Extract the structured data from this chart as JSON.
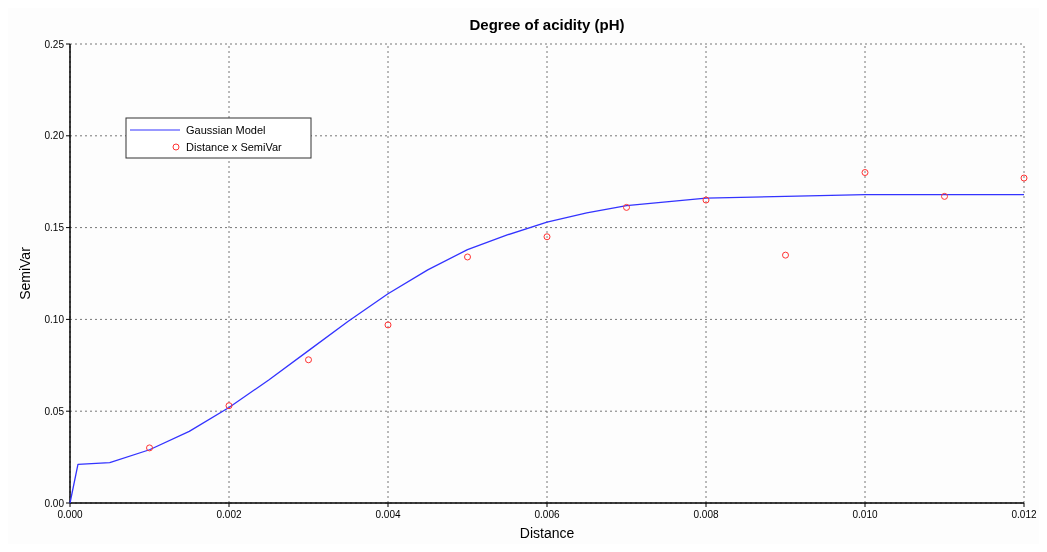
{
  "chart_data": {
    "type": "line",
    "title": "Degree of acidity (pH)",
    "xlabel": "Distance",
    "ylabel": "SemiVar",
    "xlim": [
      0,
      0.012
    ],
    "xticks": [
      {
        "value": 0,
        "label": "0.000"
      },
      {
        "value": 0.002,
        "label": "0.002"
      },
      {
        "value": 0.004,
        "label": "0.004"
      },
      {
        "value": 0.006,
        "label": "0.006"
      },
      {
        "value": 0.008,
        "label": "0.008"
      },
      {
        "value": 0.01,
        "label": "0.010"
      },
      {
        "value": 0.012,
        "label": "0.012"
      }
    ],
    "ylim": [
      0,
      0.25
    ],
    "yticks": [
      {
        "value": 0,
        "label": "0.00"
      },
      {
        "value": 0.05,
        "label": "0.05"
      },
      {
        "value": 0.1,
        "label": "0.10"
      },
      {
        "value": 0.15,
        "label": "0.15"
      },
      {
        "value": 0.2,
        "label": "0.20"
      },
      {
        "value": 0.25,
        "label": "0.25"
      }
    ],
    "grid": true,
    "legend": "top left",
    "series": [
      {
        "name": "Gaussian Model",
        "color": "#3333ff",
        "x": [
          0,
          0.0001,
          0.0005,
          0.001,
          0.0015,
          0.002,
          0.0025,
          0.003,
          0.0035,
          0.004,
          0.0045,
          0.005,
          0.0055,
          0.006,
          0.0065,
          0.007,
          0.0075,
          0.008,
          0.009,
          0.01,
          0.011,
          0.012
        ],
        "values": [
          0,
          0.021,
          0.022,
          0.029,
          0.039,
          0.052,
          0.067,
          0.083,
          0.099,
          0.114,
          0.127,
          0.138,
          0.146,
          0.153,
          0.158,
          0.162,
          0.164,
          0.166,
          0.167,
          0.168,
          0.168,
          0.168
        ]
      },
      {
        "name": "Distance x SemiVar",
        "type": "scatter",
        "color": "#ff3333",
        "marker": "circle",
        "x": [
          0.001,
          0.002,
          0.003,
          0.004,
          0.005,
          0.006,
          0.007,
          0.008,
          0.009,
          0.01,
          0.011,
          0.012
        ],
        "values": [
          0.03,
          0.053,
          0.078,
          0.097,
          0.134,
          0.145,
          0.161,
          0.165,
          0.135,
          0.18,
          0.167,
          0.177
        ]
      }
    ]
  }
}
